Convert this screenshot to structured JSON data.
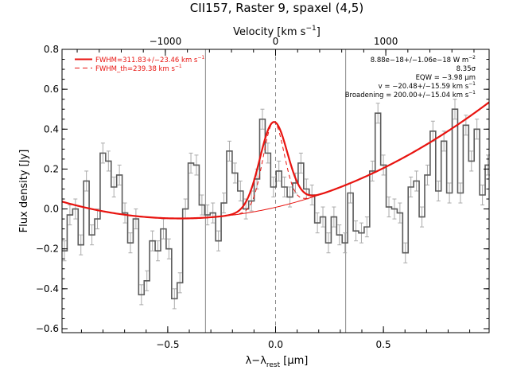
{
  "colors": {
    "spectrum": "#5a5a5a",
    "error": "#aaaaaa",
    "fit": "#e8130f",
    "vline": "#888888",
    "axis": "#000000"
  },
  "chart_data": {
    "type": "line",
    "title": "CII157, Raster 9, spaxel (4,5)",
    "xlabel_main": "λ−λ",
    "xlabel_sub": "rest",
    "xlabel_unit": " [μm]",
    "ylabel": "Flux density [Jy]",
    "top_axis_label_main": "Velocity [km s",
    "top_axis_label_exp": "−1",
    "top_axis_label_end": "]",
    "xlim": [
      -0.99,
      0.99
    ],
    "ylim": [
      -0.62,
      0.8
    ],
    "x_ticks": [
      {
        "v": -0.5,
        "label": "−0.5"
      },
      {
        "v": 0.0,
        "label": "0.0"
      },
      {
        "v": 0.5,
        "label": "0.5"
      }
    ],
    "y_ticks": [
      {
        "v": -0.6,
        "label": "−0.6"
      },
      {
        "v": -0.4,
        "label": "−0.4"
      },
      {
        "v": -0.2,
        "label": "−0.2"
      },
      {
        "v": 0.0,
        "label": "0.0"
      },
      {
        "v": 0.2,
        "label": "0.2"
      },
      {
        "v": 0.4,
        "label": "0.4"
      },
      {
        "v": 0.6,
        "label": "0.6"
      },
      {
        "v": 0.8,
        "label": "0.8"
      }
    ],
    "top_ticks": [
      {
        "x": -0.511,
        "label": "−1000"
      },
      {
        "x": 0.0,
        "label": "0"
      },
      {
        "x": 0.511,
        "label": "1000"
      }
    ],
    "vertical_lines_x": [
      -0.325,
      0.325
    ],
    "center_line_x": 0.0,
    "legend": [
      {
        "label": "FWHM=311.83+/−23.46 km s",
        "exp": "−1",
        "style": "solid"
      },
      {
        "label": "FWHM_th=239.38 km s",
        "exp": "−1",
        "style": "dashed"
      }
    ],
    "annotations": [
      {
        "text": "8.88e−18+/−1.06e−18 W m",
        "exp": "−2"
      },
      {
        "text": "8.35σ",
        "exp": ""
      },
      {
        "text": "EQW = −3.98 μm",
        "exp": ""
      },
      {
        "text": "v = −20.48+/−15.59 km s",
        "exp": "−1"
      },
      {
        "text": "Broadening = 200.00+/−15.04 km s",
        "exp": "−1"
      }
    ],
    "baseline": {
      "poly": [
        -0.0462,
        0.039,
        0.2833
      ],
      "xcenter": -0.375
    },
    "gaussian_fit": {
      "amp": 0.43,
      "center": -0.0093,
      "sigma": 0.0636
    },
    "gaussian_thermal": {
      "amp": 0.43,
      "center": -0.0093,
      "sigma": 0.0488
    },
    "spectrum": {
      "step_width": 0.0255,
      "x": [
        -0.979,
        -0.9535,
        -0.928,
        -0.9025,
        -0.877,
        -0.8515,
        -0.826,
        -0.8005,
        -0.775,
        -0.7495,
        -0.724,
        -0.6985,
        -0.673,
        -0.6475,
        -0.622,
        -0.5965,
        -0.571,
        -0.5455,
        -0.52,
        -0.4945,
        -0.469,
        -0.4435,
        -0.418,
        -0.3925,
        -0.367,
        -0.3415,
        -0.316,
        -0.2905,
        -0.265,
        -0.2395,
        -0.214,
        -0.1885,
        -0.163,
        -0.1375,
        -0.112,
        -0.0865,
        -0.061,
        -0.0355,
        -0.01,
        0.0155,
        0.041,
        0.0665,
        0.092,
        0.1175,
        0.143,
        0.1685,
        0.194,
        0.2195,
        0.245,
        0.2705,
        0.296,
        0.3215,
        0.347,
        0.3725,
        0.398,
        0.4235,
        0.449,
        0.4745,
        0.5,
        0.5255,
        0.551,
        0.5765,
        0.602,
        0.6275,
        0.653,
        0.6785,
        0.704,
        0.7295,
        0.755,
        0.7805,
        0.806,
        0.8315,
        0.857,
        0.8825,
        0.908,
        0.9335,
        0.959,
        0.9845
      ],
      "y": [
        -0.21,
        -0.03,
        0.0,
        -0.18,
        0.14,
        -0.13,
        -0.05,
        0.28,
        0.24,
        0.11,
        0.17,
        -0.02,
        -0.17,
        -0.05,
        -0.43,
        -0.36,
        -0.16,
        -0.21,
        -0.1,
        -0.2,
        -0.45,
        -0.37,
        0.0,
        0.23,
        0.22,
        0.02,
        -0.03,
        -0.02,
        -0.16,
        0.03,
        0.29,
        0.18,
        0.09,
        0.0,
        0.04,
        0.15,
        0.45,
        0.28,
        0.11,
        0.19,
        0.11,
        0.06,
        0.13,
        0.23,
        0.1,
        0.07,
        -0.07,
        -0.04,
        -0.17,
        -0.04,
        -0.13,
        -0.17,
        0.08,
        -0.11,
        -0.12,
        -0.09,
        0.19,
        0.48,
        0.22,
        0.01,
        0.0,
        -0.02,
        -0.22,
        0.11,
        0.14,
        -0.04,
        0.17,
        0.39,
        0.09,
        0.34,
        0.08,
        0.5,
        0.08,
        0.42,
        0.24,
        0.4,
        0.07,
        0.22
      ],
      "err": 0.05
    }
  }
}
